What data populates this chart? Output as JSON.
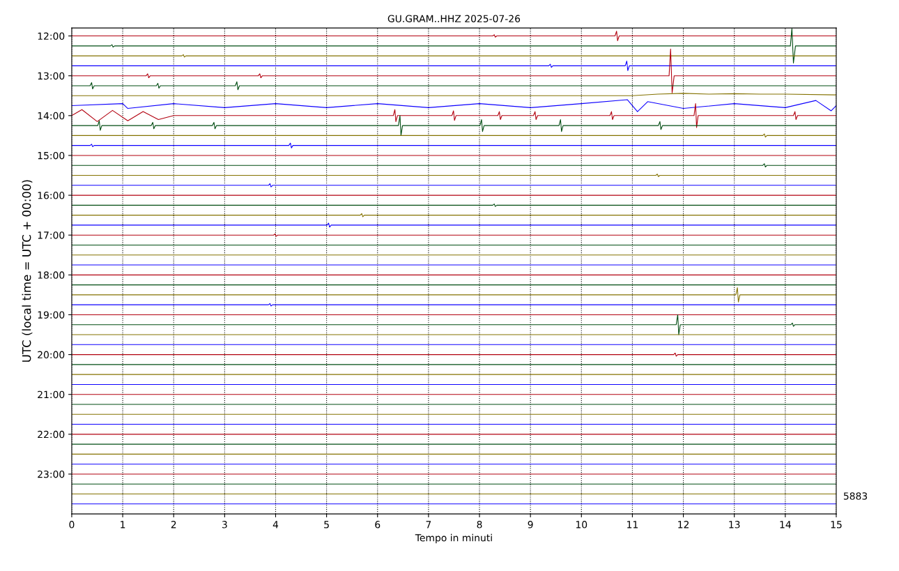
{
  "chart_data": {
    "type": "line",
    "title": "GU.GRAM..HHZ 2025-07-26",
    "xlabel": "Tempo in minuti",
    "ylabel": "UTC (local time = UTC + 00:00)",
    "annotations": [
      "5883"
    ],
    "xlim": [
      0,
      15
    ],
    "xticks": [
      0,
      1,
      2,
      3,
      4,
      5,
      6,
      7,
      8,
      9,
      10,
      11,
      12,
      13,
      14,
      15
    ],
    "ylim": [
      24.0,
      11.8
    ],
    "yticks": [
      {
        "value": 12,
        "label": "12:00"
      },
      {
        "value": 13,
        "label": "13:00"
      },
      {
        "value": 14,
        "label": "14:00"
      },
      {
        "value": 15,
        "label": "15:00"
      },
      {
        "value": 16,
        "label": "16:00"
      },
      {
        "value": 17,
        "label": "17:00"
      },
      {
        "value": 18,
        "label": "18:00"
      },
      {
        "value": 19,
        "label": "19:00"
      },
      {
        "value": 20,
        "label": "20:00"
      },
      {
        "value": 21,
        "label": "21:00"
      },
      {
        "value": 22,
        "label": "22:00"
      },
      {
        "value": 23,
        "label": "23:00"
      }
    ],
    "grid": "x",
    "legend": false,
    "marker": "none",
    "line_style": "solid",
    "series": [
      {
        "color": "#b2000f",
        "x": [
          0,
          8.26,
          8.29,
          8.31,
          8.34,
          10.66,
          10.69,
          10.71,
          10.74,
          15
        ],
        "values": [
          12,
          12,
          11.97,
          12.03,
          12,
          12,
          11.88,
          12.12,
          12,
          12
        ]
      },
      {
        "color": "#004c12",
        "x": [
          0,
          0.76,
          0.79,
          0.81,
          0.84,
          14.1,
          14.13,
          14.16,
          14.2,
          15
        ],
        "values": [
          12.25,
          12.25,
          12.22,
          12.28,
          12.25,
          12.25,
          11.81,
          12.68,
          12.25,
          12.25
        ]
      },
      {
        "color": "#847200",
        "x": [
          0,
          2.16,
          2.19,
          2.21,
          2.24,
          15
        ],
        "values": [
          12.5,
          12.5,
          12.47,
          12.53,
          12.5,
          12.5
        ]
      },
      {
        "color": "#0e01ff",
        "x": [
          0,
          9.36,
          9.39,
          9.41,
          9.44,
          10.86,
          10.89,
          10.91,
          10.94,
          15
        ],
        "values": [
          12.75,
          12.75,
          12.71,
          12.79,
          12.75,
          12.75,
          12.63,
          12.87,
          12.75,
          12.75
        ]
      },
      {
        "color": "#b2000f",
        "x": [
          0,
          1.46,
          1.49,
          1.51,
          1.54,
          3.66,
          3.69,
          3.71,
          3.74,
          11.72,
          11.75,
          11.78,
          11.82,
          15
        ],
        "values": [
          13,
          13,
          12.95,
          13.05,
          13,
          13,
          12.95,
          13.05,
          13,
          13,
          12.33,
          13.43,
          13,
          13
        ]
      },
      {
        "color": "#004c12",
        "x": [
          0,
          0.36,
          0.39,
          0.41,
          0.44,
          1.66,
          1.69,
          1.71,
          1.74,
          3.21,
          3.24,
          3.26,
          3.29,
          15
        ],
        "values": [
          13.25,
          13.25,
          13.17,
          13.33,
          13.25,
          13.25,
          13.19,
          13.31,
          13.25,
          13.25,
          13.15,
          13.35,
          13.25,
          13.25
        ]
      },
      {
        "color": "#847200",
        "x": [
          0,
          11,
          11.5,
          12,
          12.5,
          13,
          13.5,
          14,
          15
        ],
        "values": [
          13.5,
          13.5,
          13.46,
          13.44,
          13.46,
          13.45,
          13.46,
          13.46,
          13.48
        ]
      },
      {
        "color": "#0e01ff",
        "x": [
          0,
          1,
          1.1,
          2,
          3,
          4,
          5,
          6,
          7,
          8,
          9,
          10,
          10.9,
          11.1,
          11.3,
          12,
          13,
          14,
          14.6,
          14.9,
          15
        ],
        "values": [
          13.75,
          13.7,
          13.82,
          13.7,
          13.8,
          13.7,
          13.8,
          13.7,
          13.8,
          13.7,
          13.8,
          13.7,
          13.6,
          13.9,
          13.65,
          13.82,
          13.7,
          13.8,
          13.62,
          13.88,
          13.75
        ]
      },
      {
        "color": "#b2000f",
        "x": [
          0,
          0.2,
          0.5,
          0.8,
          1.1,
          1.4,
          1.7,
          2.0,
          6.31,
          6.34,
          6.36,
          6.39,
          7.46,
          7.49,
          7.51,
          7.54,
          8.36,
          8.39,
          8.41,
          8.44,
          9.06,
          9.09,
          9.11,
          9.14,
          10.56,
          10.59,
          10.61,
          10.64,
          12.21,
          12.24,
          12.26,
          12.29,
          14.16,
          14.19,
          14.21,
          14.24,
          15
        ],
        "values": [
          14,
          13.85,
          14.15,
          13.87,
          14.13,
          13.9,
          14.1,
          14,
          14,
          13.85,
          14.15,
          14,
          14,
          13.88,
          14.12,
          14,
          14,
          13.9,
          14.1,
          14,
          14,
          13.9,
          14.1,
          14,
          14,
          13.9,
          14.1,
          14,
          14,
          13.7,
          14.3,
          14,
          14,
          13.9,
          14.1,
          14,
          14
        ]
      },
      {
        "color": "#004c12",
        "x": [
          0,
          0.51,
          0.54,
          0.56,
          0.59,
          1.56,
          1.59,
          1.61,
          1.64,
          2.76,
          2.79,
          2.81,
          2.84,
          6.41,
          6.44,
          6.46,
          6.49,
          8.01,
          8.04,
          8.06,
          8.09,
          9.56,
          9.59,
          9.61,
          9.64,
          11.51,
          11.54,
          11.56,
          11.59,
          15
        ],
        "values": [
          14.25,
          14.25,
          14.13,
          14.37,
          14.25,
          14.25,
          14.17,
          14.33,
          14.25,
          14.25,
          14.17,
          14.33,
          14.25,
          14.25,
          14.0,
          14.5,
          14.25,
          14.25,
          14.1,
          14.4,
          14.25,
          14.25,
          14.1,
          14.4,
          14.25,
          14.25,
          14.15,
          14.35,
          14.25,
          14.25
        ]
      },
      {
        "color": "#847200",
        "x": [
          0,
          13.56,
          13.59,
          13.61,
          13.64,
          15
        ],
        "values": [
          14.5,
          14.5,
          14.46,
          14.54,
          14.5,
          14.5
        ]
      },
      {
        "color": "#0e01ff",
        "x": [
          0,
          0.36,
          0.39,
          0.41,
          0.44,
          4.26,
          4.29,
          4.31,
          4.34,
          15
        ],
        "values": [
          14.75,
          14.75,
          14.72,
          14.78,
          14.75,
          14.75,
          14.69,
          14.81,
          14.75,
          14.75
        ]
      },
      {
        "color": "#b2000f",
        "x": [
          0,
          15
        ],
        "values": [
          15,
          15
        ]
      },
      {
        "color": "#004c12",
        "x": [
          0,
          13.56,
          13.59,
          13.61,
          13.64,
          15
        ],
        "values": [
          15.25,
          15.25,
          15.21,
          15.29,
          15.25,
          15.25
        ]
      },
      {
        "color": "#847200",
        "x": [
          0,
          11.46,
          11.49,
          11.51,
          11.54,
          15
        ],
        "values": [
          15.5,
          15.5,
          15.47,
          15.53,
          15.5,
          15.5
        ]
      },
      {
        "color": "#0e01ff",
        "x": [
          0,
          3.86,
          3.89,
          3.91,
          3.94,
          15
        ],
        "values": [
          15.75,
          15.75,
          15.71,
          15.79,
          15.75,
          15.75
        ]
      },
      {
        "color": "#b2000f",
        "x": [
          0,
          15
        ],
        "values": [
          16,
          16
        ]
      },
      {
        "color": "#004c12",
        "x": [
          0,
          8.26,
          8.29,
          8.31,
          8.34,
          15
        ],
        "values": [
          16.25,
          16.25,
          16.22,
          16.28,
          16.25,
          16.25
        ]
      },
      {
        "color": "#847200",
        "x": [
          0,
          5.66,
          5.69,
          5.71,
          5.74,
          15
        ],
        "values": [
          16.5,
          16.5,
          16.46,
          16.54,
          16.5,
          16.5
        ]
      },
      {
        "color": "#0e01ff",
        "x": [
          0,
          5.01,
          5.04,
          5.06,
          5.09,
          15
        ],
        "values": [
          16.75,
          16.75,
          16.7,
          16.8,
          16.75,
          16.75
        ]
      },
      {
        "color": "#b2000f",
        "x": [
          0,
          3.96,
          3.99,
          4.01,
          4.04,
          15
        ],
        "values": [
          17,
          17,
          16.97,
          17.03,
          17,
          17
        ]
      },
      {
        "color": "#004c12",
        "x": [
          0,
          15
        ],
        "values": [
          17.25,
          17.25
        ]
      },
      {
        "color": "#847200",
        "x": [
          0,
          15
        ],
        "values": [
          17.5,
          17.5
        ]
      },
      {
        "color": "#0e01ff",
        "x": [
          0,
          15
        ],
        "values": [
          17.75,
          17.75
        ]
      },
      {
        "color": "#b2000f",
        "x": [
          0,
          15
        ],
        "values": [
          18,
          18
        ]
      },
      {
        "color": "#004c12",
        "x": [
          0,
          15
        ],
        "values": [
          18.25,
          18.25
        ]
      },
      {
        "color": "#847200",
        "x": [
          0,
          13.03,
          13.06,
          13.08,
          13.11,
          15
        ],
        "values": [
          18.5,
          18.5,
          18.32,
          18.68,
          18.5,
          18.5
        ]
      },
      {
        "color": "#0e01ff",
        "x": [
          0,
          3.86,
          3.89,
          3.91,
          3.94,
          15
        ],
        "values": [
          18.75,
          18.75,
          18.72,
          18.78,
          18.75,
          18.75
        ]
      },
      {
        "color": "#b2000f",
        "x": [
          0,
          15
        ],
        "values": [
          19,
          19
        ]
      },
      {
        "color": "#004c12",
        "x": [
          0,
          11.86,
          11.89,
          11.91,
          11.94,
          14.11,
          14.14,
          14.16,
          14.19,
          15
        ],
        "values": [
          19.25,
          19.25,
          19.0,
          19.5,
          19.25,
          19.25,
          19.21,
          19.29,
          19.25,
          19.25
        ]
      },
      {
        "color": "#847200",
        "x": [
          0,
          15
        ],
        "values": [
          19.5,
          19.5
        ]
      },
      {
        "color": "#0e01ff",
        "x": [
          0,
          15
        ],
        "values": [
          19.75,
          19.75
        ]
      },
      {
        "color": "#b2000f",
        "x": [
          0,
          11.81,
          11.84,
          11.86,
          11.89,
          15
        ],
        "values": [
          20,
          20,
          19.96,
          20.04,
          20,
          20
        ]
      },
      {
        "color": "#004c12",
        "x": [
          0,
          15
        ],
        "values": [
          20.25,
          20.25
        ]
      },
      {
        "color": "#847200",
        "x": [
          0,
          15
        ],
        "values": [
          20.5,
          20.5
        ]
      },
      {
        "color": "#0e01ff",
        "x": [
          0,
          15
        ],
        "values": [
          20.75,
          20.75
        ]
      },
      {
        "color": "#b2000f",
        "x": [
          0,
          15
        ],
        "values": [
          21,
          21
        ]
      },
      {
        "color": "#004c12",
        "x": [
          0,
          15
        ],
        "values": [
          21.25,
          21.25
        ]
      },
      {
        "color": "#847200",
        "x": [
          0,
          15
        ],
        "values": [
          21.5,
          21.5
        ]
      },
      {
        "color": "#0e01ff",
        "x": [
          0,
          15
        ],
        "values": [
          21.75,
          21.75
        ]
      },
      {
        "color": "#b2000f",
        "x": [
          0,
          15
        ],
        "values": [
          22,
          22
        ]
      },
      {
        "color": "#004c12",
        "x": [
          0,
          15
        ],
        "values": [
          22.25,
          22.25
        ]
      },
      {
        "color": "#847200",
        "x": [
          0,
          15
        ],
        "values": [
          22.5,
          22.5
        ]
      },
      {
        "color": "#0e01ff",
        "x": [
          0,
          15
        ],
        "values": [
          22.75,
          22.75
        ]
      },
      {
        "color": "#b2000f",
        "x": [
          0,
          15
        ],
        "values": [
          23,
          23
        ]
      },
      {
        "color": "#004c12",
        "x": [
          0,
          15
        ],
        "values": [
          23.25,
          23.25
        ]
      },
      {
        "color": "#847200",
        "x": [
          0,
          15
        ],
        "values": [
          23.5,
          23.5
        ]
      },
      {
        "color": "#0e01ff",
        "x": [
          0,
          15
        ],
        "values": [
          23.75,
          23.75
        ]
      }
    ]
  }
}
